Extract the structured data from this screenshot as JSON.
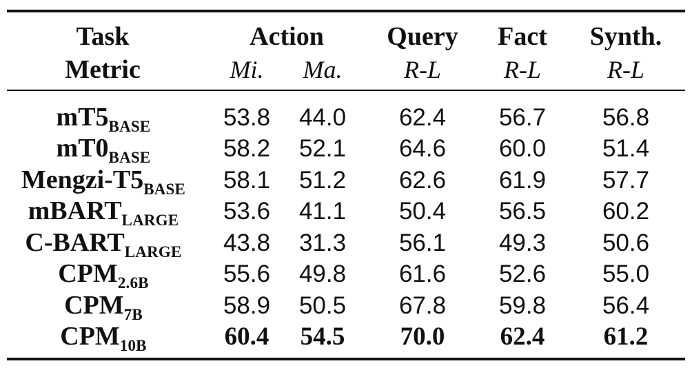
{
  "table": {
    "header": {
      "row1": {
        "task_label": "Task",
        "action_label": "Action",
        "query_label": "Query",
        "fact_label": "Fact",
        "synth_label": "Synth."
      },
      "row2": {
        "metric_label": "Metric",
        "mi_label": "Mi.",
        "ma_label": "Ma.",
        "query_metric": "R-L",
        "fact_metric": "R-L",
        "synth_metric": "R-L"
      }
    },
    "rows": [
      {
        "model": "mT5",
        "sub": "BASE",
        "mi": "53.8",
        "ma": "44.0",
        "query": "62.4",
        "fact": "56.7",
        "synth": "56.8"
      },
      {
        "model": "mT0",
        "sub": "BASE",
        "mi": "58.2",
        "ma": "52.1",
        "query": "64.6",
        "fact": "60.0",
        "synth": "51.4"
      },
      {
        "model": "Mengzi-T5",
        "sub": "BASE",
        "mi": "58.1",
        "ma": "51.2",
        "query": "62.6",
        "fact": "61.9",
        "synth": "57.7"
      },
      {
        "model": "mBART",
        "sub": "LARGE",
        "mi": "53.6",
        "ma": "41.1",
        "query": "50.4",
        "fact": "56.5",
        "synth": "60.2"
      },
      {
        "model": "C-BART",
        "sub": "LARGE",
        "mi": "43.8",
        "ma": "31.3",
        "query": "56.1",
        "fact": "49.3",
        "synth": "50.6"
      },
      {
        "model": "CPM",
        "sub": "2.6B",
        "mi": "55.6",
        "ma": "49.8",
        "query": "61.6",
        "fact": "52.6",
        "synth": "55.0"
      },
      {
        "model": "CPM",
        "sub": "7B",
        "mi": "58.9",
        "ma": "50.5",
        "query": "67.8",
        "fact": "59.8",
        "synth": "56.4"
      },
      {
        "model": "CPM",
        "sub": "10B",
        "mi": "60.4",
        "ma": "54.5",
        "query": "70.0",
        "fact": "62.4",
        "synth": "61.2"
      }
    ]
  }
}
